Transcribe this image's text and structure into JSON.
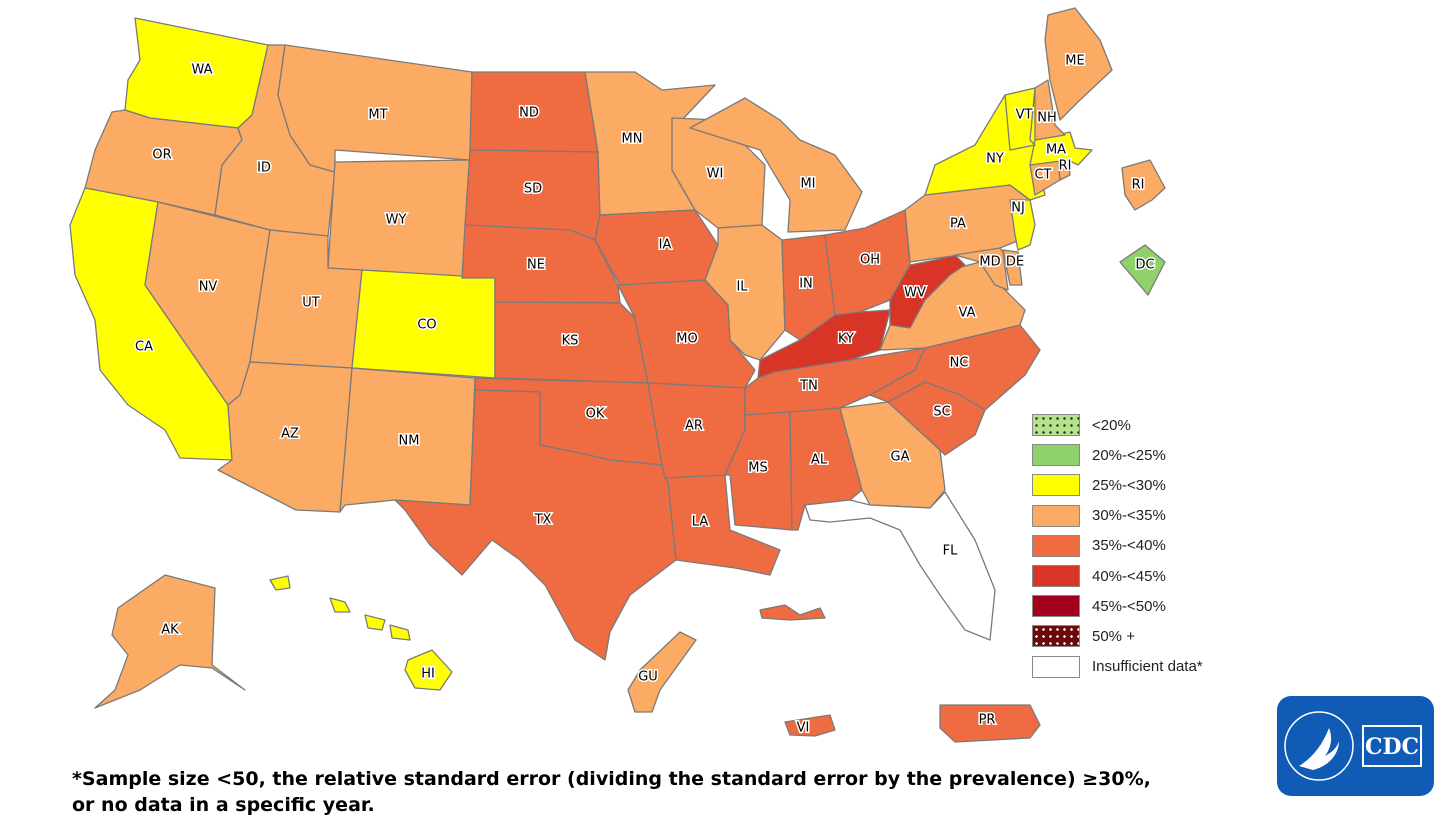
{
  "legend": [
    {
      "label": "<20%",
      "color": "#b5e38b",
      "pattern": "dots"
    },
    {
      "label": "20%-<25%",
      "color": "#8fd16a",
      "pattern": "none"
    },
    {
      "label": "25%-<30%",
      "color": "#ffff00",
      "pattern": "none"
    },
    {
      "label": "30%-<35%",
      "color": "#fbab64",
      "pattern": "none"
    },
    {
      "label": "35%-<40%",
      "color": "#ef6b42",
      "pattern": "none"
    },
    {
      "label": "40%-<45%",
      "color": "#d93526",
      "pattern": "none"
    },
    {
      "label": "45%-<50%",
      "color": "#a3001e",
      "pattern": "none"
    },
    {
      "label": "50% +",
      "color": "#6b0a0a",
      "pattern": "dots"
    },
    {
      "label": "Insufficient data*",
      "color": "#ffffff",
      "pattern": "none"
    }
  ],
  "states": {
    "WA": {
      "label": "WA",
      "category": "25%-<30%"
    },
    "OR": {
      "label": "OR",
      "category": "30%-<35%"
    },
    "CA": {
      "label": "CA",
      "category": "25%-<30%"
    },
    "NV": {
      "label": "NV",
      "category": "30%-<35%"
    },
    "ID": {
      "label": "ID",
      "category": "30%-<35%"
    },
    "MT": {
      "label": "MT",
      "category": "30%-<35%"
    },
    "WY": {
      "label": "WY",
      "category": "30%-<35%"
    },
    "UT": {
      "label": "UT",
      "category": "30%-<35%"
    },
    "AZ": {
      "label": "AZ",
      "category": "30%-<35%"
    },
    "CO": {
      "label": "CO",
      "category": "25%-<30%"
    },
    "NM": {
      "label": "NM",
      "category": "30%-<35%"
    },
    "ND": {
      "label": "ND",
      "category": "35%-<40%"
    },
    "SD": {
      "label": "SD",
      "category": "35%-<40%"
    },
    "NE": {
      "label": "NE",
      "category": "35%-<40%"
    },
    "KS": {
      "label": "KS",
      "category": "35%-<40%"
    },
    "OK": {
      "label": "OK",
      "category": "35%-<40%"
    },
    "TX": {
      "label": "TX",
      "category": "35%-<40%"
    },
    "MN": {
      "label": "MN",
      "category": "30%-<35%"
    },
    "IA": {
      "label": "IA",
      "category": "35%-<40%"
    },
    "MO": {
      "label": "MO",
      "category": "35%-<40%"
    },
    "AR": {
      "label": "AR",
      "category": "35%-<40%"
    },
    "LA": {
      "label": "LA",
      "category": "35%-<40%"
    },
    "WI": {
      "label": "WI",
      "category": "30%-<35%"
    },
    "IL": {
      "label": "IL",
      "category": "30%-<35%"
    },
    "MI": {
      "label": "MI",
      "category": "30%-<35%"
    },
    "IN": {
      "label": "IN",
      "category": "35%-<40%"
    },
    "OH": {
      "label": "OH",
      "category": "35%-<40%"
    },
    "KY": {
      "label": "KY",
      "category": "40%-<45%"
    },
    "TN": {
      "label": "TN",
      "category": "35%-<40%"
    },
    "MS": {
      "label": "MS",
      "category": "35%-<40%"
    },
    "AL": {
      "label": "AL",
      "category": "35%-<40%"
    },
    "GA": {
      "label": "GA",
      "category": "30%-<35%"
    },
    "FL": {
      "label": "FL",
      "category": "Insufficient data*"
    },
    "SC": {
      "label": "SC",
      "category": "35%-<40%"
    },
    "NC": {
      "label": "NC",
      "category": "35%-<40%"
    },
    "VA": {
      "label": "VA",
      "category": "30%-<35%"
    },
    "WV": {
      "label": "WV",
      "category": "40%-<45%"
    },
    "PA": {
      "label": "PA",
      "category": "30%-<35%"
    },
    "NY": {
      "label": "NY",
      "category": "25%-<30%"
    },
    "NJ": {
      "label": "NJ",
      "category": "25%-<30%"
    },
    "DE": {
      "label": "DE",
      "category": "30%-<35%"
    },
    "MD": {
      "label": "MD",
      "category": "30%-<35%"
    },
    "CT": {
      "label": "CT",
      "category": "30%-<35%"
    },
    "RI": {
      "label": "RI",
      "category": "30%-<35%"
    },
    "RI_inset": {
      "label": "RI",
      "category": "30%-<35%"
    },
    "MA": {
      "label": "MA",
      "category": "25%-<30%"
    },
    "VT": {
      "label": "VT",
      "category": "25%-<30%"
    },
    "NH": {
      "label": "NH",
      "category": "30%-<35%"
    },
    "ME": {
      "label": "ME",
      "category": "30%-<35%"
    },
    "DC": {
      "label": "DC",
      "category": "20%-<25%"
    },
    "AK": {
      "label": "AK",
      "category": "30%-<35%"
    },
    "HI": {
      "label": "HI",
      "category": "25%-<30%"
    },
    "GU": {
      "label": "GU",
      "category": "30%-<35%"
    },
    "PR": {
      "label": "PR",
      "category": "35%-<40%"
    },
    "VI": {
      "label": "VI",
      "category": "35%-<40%"
    }
  },
  "footnote": {
    "line1": "*Sample size <50, the relative standard error (dividing the standard error by the prevalence) ≥30%,",
    "line2": "or no data in a specific year."
  },
  "logo": {
    "text": "CDC"
  }
}
